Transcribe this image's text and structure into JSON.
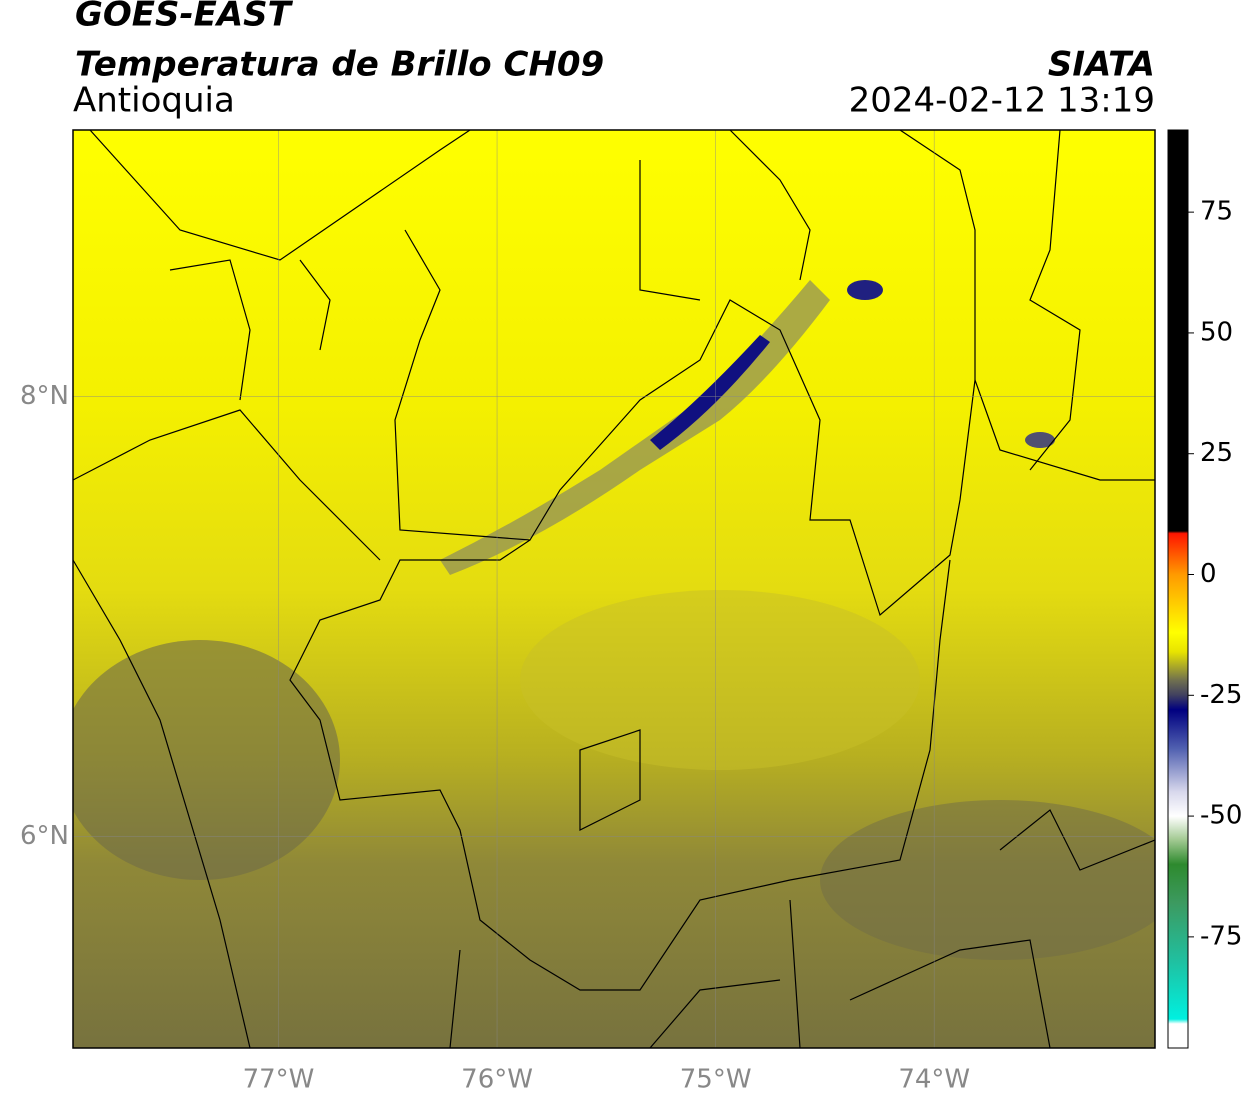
{
  "header": {
    "title": "GOES-EAST",
    "subtitle": "Temperatura de Brillo CH09",
    "region": "Antioquia",
    "source": "SIATA",
    "datetime": "2024-02-12 13:19"
  },
  "map": {
    "xlim": [
      -77.94,
      -72.99
    ],
    "ylim": [
      5.04,
      9.21
    ],
    "xticks": [
      {
        "value": -77,
        "label": "77°W"
      },
      {
        "value": -76,
        "label": "76°W"
      },
      {
        "value": -75,
        "label": "75°W"
      },
      {
        "value": -74,
        "label": "74°W"
      }
    ],
    "yticks": [
      {
        "value": 6,
        "label": "6°N"
      },
      {
        "value": 8,
        "label": "8°N"
      }
    ],
    "grid": true
  },
  "colorbar": {
    "lim": [
      -98,
      92
    ],
    "ticks": [
      75,
      50,
      25,
      0,
      -25,
      -50,
      -75
    ],
    "stops": [
      {
        "value": 92,
        "color": "#000000"
      },
      {
        "value": 9,
        "color": "#000000"
      },
      {
        "value": 8.5,
        "color": "#ff1500"
      },
      {
        "value": 0,
        "color": "#ff9a00"
      },
      {
        "value": -12,
        "color": "#ffff00"
      },
      {
        "value": -16,
        "color": "#e8e400"
      },
      {
        "value": -22,
        "color": "#6e6e50"
      },
      {
        "value": -25,
        "color": "#404060"
      },
      {
        "value": -28,
        "color": "#000080"
      },
      {
        "value": -36,
        "color": "#5060b0"
      },
      {
        "value": -45,
        "color": "#d8d8ec"
      },
      {
        "value": -50,
        "color": "#ffffff"
      },
      {
        "value": -55,
        "color": "#a0c890"
      },
      {
        "value": -60,
        "color": "#2e8a2e"
      },
      {
        "value": -68,
        "color": "#3c9a60"
      },
      {
        "value": -80,
        "color": "#20c0a0"
      },
      {
        "value": -92,
        "color": "#00f0e0"
      },
      {
        "value": -93,
        "color": "#ffffff"
      },
      {
        "value": -98,
        "color": "#ffffff"
      }
    ]
  }
}
